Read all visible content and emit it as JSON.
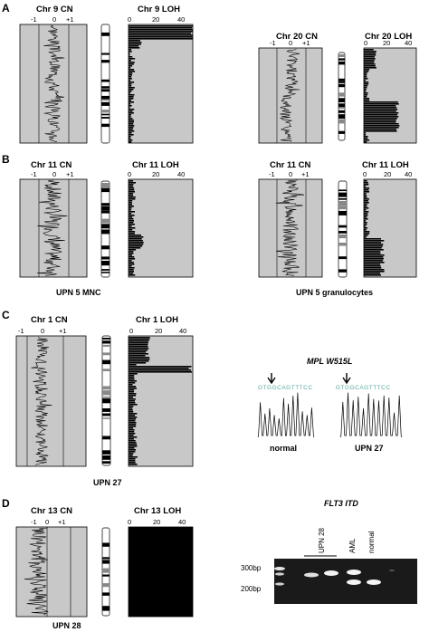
{
  "panels": [
    {
      "letter": "A",
      "groups": [
        {
          "cn_title": "Chr 9 CN",
          "loh_title": "Chr 9 LOH",
          "caption": ""
        },
        {
          "cn_title": "Chr 20 CN",
          "loh_title": "Chr 20 LOH",
          "caption": ""
        }
      ]
    },
    {
      "letter": "B",
      "groups": [
        {
          "cn_title": "Chr 11 CN",
          "loh_title": "Chr 11 LOH",
          "caption": "UPN 5 MNC"
        },
        {
          "cn_title": "Chr 11 CN",
          "loh_title": "Chr 11 LOH",
          "caption": "UPN 5 granulocytes"
        }
      ]
    },
    {
      "letter": "C",
      "groups": [
        {
          "cn_title": "Chr 1 CN",
          "loh_title": "Chr 1 LOH",
          "caption": "UPN 27"
        }
      ]
    },
    {
      "letter": "D",
      "groups": [
        {
          "cn_title": "Chr 13 CN",
          "loh_title": "Chr 13 LOH",
          "caption": "UPN 28"
        }
      ]
    }
  ],
  "cn_ticks": [
    "-1",
    "0",
    "+1"
  ],
  "loh_ticks": [
    "0",
    "20",
    "40"
  ],
  "mpl": {
    "title": "MPL W515L",
    "normal_seq": "GTGGCAGTTTCC",
    "mutant_seq": "GTGGCAGTTTCC",
    "labels": [
      "normal",
      "UPN 27"
    ]
  },
  "flt3": {
    "title": "FLT3 ITD",
    "lane_labels": [
      "UPN 28",
      "AML",
      "normal"
    ],
    "markers": [
      "300bp",
      "200bp"
    ]
  },
  "colors": {
    "plot_bg": "#c8c8c8",
    "trace": "#000000",
    "gel_bg": "#1a1a1a"
  }
}
